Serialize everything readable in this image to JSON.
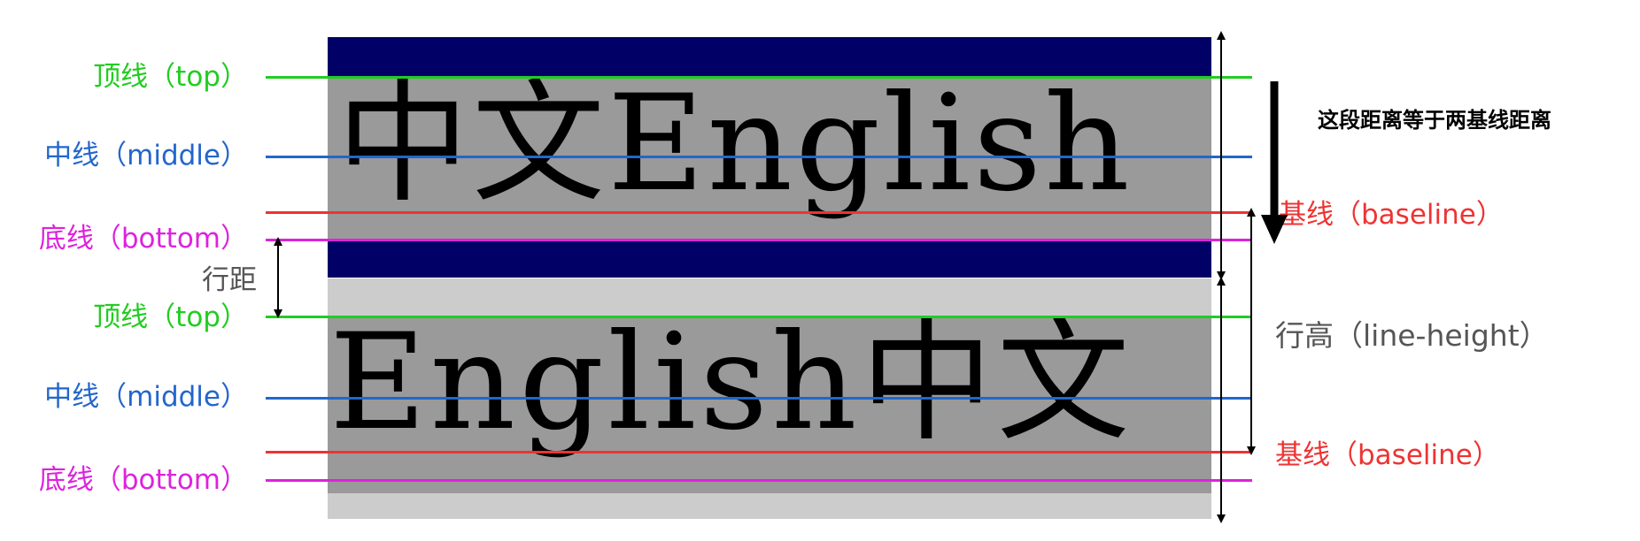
{
  "colors": {
    "top": "#22cc22",
    "middle": "#2266cc",
    "baseline": "#ee3333",
    "bottom": "#dd22dd",
    "navy": "#000066",
    "line_box": "#9a9a9a",
    "line_box_light": "#cccccc",
    "dark_text": "#555555"
  },
  "rows": [
    {
      "sample_text": "中文English",
      "labels": {
        "top": "顶线（top）",
        "middle": "中线（middle）",
        "bottom": "底线（bottom）",
        "baseline": "基线（baseline）"
      }
    },
    {
      "sample_text": "English中文",
      "labels": {
        "top": "顶线（top）",
        "middle": "中线（middle）",
        "bottom": "底线（bottom）",
        "baseline": "基线（baseline）"
      }
    }
  ],
  "annotations": {
    "line_gap": "行距",
    "line_height": "行高（line-height）",
    "baseline_distance_note": "这段距离等于两基线距离"
  }
}
